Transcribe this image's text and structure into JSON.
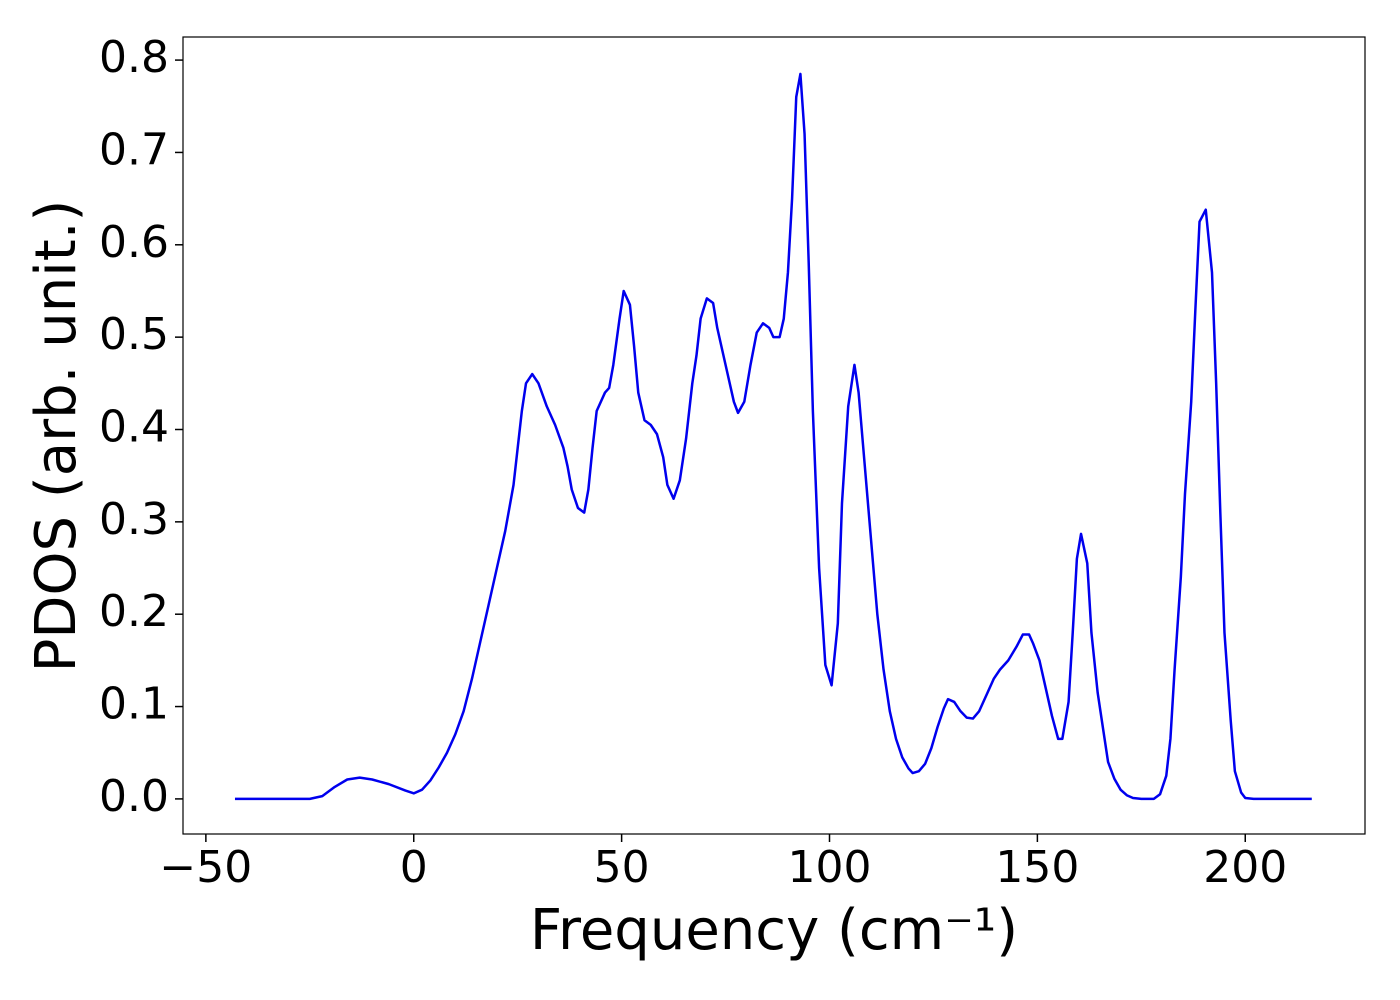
{
  "chart_data": {
    "type": "line",
    "xlabel": "Frequency (cm⁻¹)",
    "ylabel": "PDOS (arb. unit.)",
    "xlim": [
      -55.5,
      228.8
    ],
    "ylim": [
      -0.038,
      0.825
    ],
    "xticks": [
      {
        "value": -50,
        "label": "−50"
      },
      0,
      50,
      100,
      150,
      200
    ],
    "yticks": [
      {
        "value": 0,
        "label": "0.0"
      },
      0.1,
      0.2,
      0.3,
      0.4,
      0.5,
      0.6,
      0.7,
      0.8
    ],
    "grid": false,
    "series": [
      {
        "name": "PDOS",
        "color": "#0000ee",
        "x": [
          -43,
          -25,
          -22,
          -19,
          -16,
          -13,
          -10,
          -6,
          -2,
          0,
          2,
          4,
          6,
          8,
          10,
          12,
          14,
          16,
          18,
          20,
          22,
          24,
          26,
          27,
          28.5,
          30,
          32,
          34,
          36,
          37,
          38,
          39.5,
          41,
          42,
          43,
          44,
          46,
          47,
          48,
          49.5,
          50.5,
          52,
          53,
          54,
          55.5,
          57,
          58.5,
          60,
          61,
          62.5,
          64,
          65.5,
          67,
          68,
          69,
          70.5,
          72,
          73,
          75,
          77,
          78,
          79.5,
          81,
          82.5,
          84,
          85.5,
          86.5,
          88,
          89,
          90,
          91,
          92,
          93,
          94,
          95,
          96,
          97.5,
          99,
          100.5,
          102,
          103,
          104.5,
          106,
          107,
          108.5,
          110,
          111.5,
          113,
          114.5,
          116,
          117.5,
          119,
          120,
          121.5,
          123,
          124.5,
          126,
          127.5,
          128.5,
          130,
          131.5,
          133,
          134.5,
          136,
          138,
          139.5,
          141,
          143,
          145,
          146.5,
          148,
          149,
          150.5,
          152,
          153.5,
          155,
          156,
          157.5,
          158.5,
          159.5,
          160.5,
          162,
          163,
          164.5,
          166,
          167,
          168.5,
          170,
          171.5,
          173,
          175,
          178,
          179.5,
          181,
          182,
          183,
          184.5,
          185.5,
          187,
          188,
          189,
          190.5,
          192,
          193,
          194,
          195,
          196.5,
          197.5,
          199,
          200,
          202,
          216
        ],
        "values": [
          0,
          0,
          0.003,
          0.013,
          0.021,
          0.023,
          0.021,
          0.016,
          0.009,
          0.006,
          0.01,
          0.02,
          0.034,
          0.05,
          0.07,
          0.095,
          0.13,
          0.17,
          0.21,
          0.25,
          0.29,
          0.34,
          0.42,
          0.45,
          0.46,
          0.45,
          0.425,
          0.405,
          0.38,
          0.36,
          0.335,
          0.315,
          0.31,
          0.335,
          0.38,
          0.42,
          0.44,
          0.445,
          0.47,
          0.52,
          0.55,
          0.535,
          0.49,
          0.44,
          0.41,
          0.405,
          0.395,
          0.37,
          0.34,
          0.325,
          0.345,
          0.39,
          0.45,
          0.48,
          0.52,
          0.542,
          0.537,
          0.51,
          0.47,
          0.43,
          0.418,
          0.43,
          0.47,
          0.505,
          0.515,
          0.51,
          0.5,
          0.5,
          0.52,
          0.57,
          0.65,
          0.76,
          0.785,
          0.72,
          0.58,
          0.42,
          0.25,
          0.145,
          0.123,
          0.19,
          0.32,
          0.425,
          0.47,
          0.44,
          0.36,
          0.28,
          0.2,
          0.14,
          0.095,
          0.065,
          0.045,
          0.033,
          0.028,
          0.03,
          0.038,
          0.055,
          0.078,
          0.098,
          0.108,
          0.105,
          0.095,
          0.088,
          0.087,
          0.095,
          0.115,
          0.13,
          0.14,
          0.15,
          0.165,
          0.178,
          0.178,
          0.168,
          0.15,
          0.12,
          0.09,
          0.065,
          0.065,
          0.105,
          0.18,
          0.26,
          0.287,
          0.255,
          0.18,
          0.115,
          0.07,
          0.04,
          0.022,
          0.01,
          0.004,
          0.001,
          0,
          0,
          0.005,
          0.025,
          0.065,
          0.14,
          0.24,
          0.33,
          0.43,
          0.53,
          0.625,
          0.638,
          0.57,
          0.45,
          0.31,
          0.18,
          0.085,
          0.03,
          0.007,
          0.001,
          0,
          0
        ]
      }
    ]
  }
}
